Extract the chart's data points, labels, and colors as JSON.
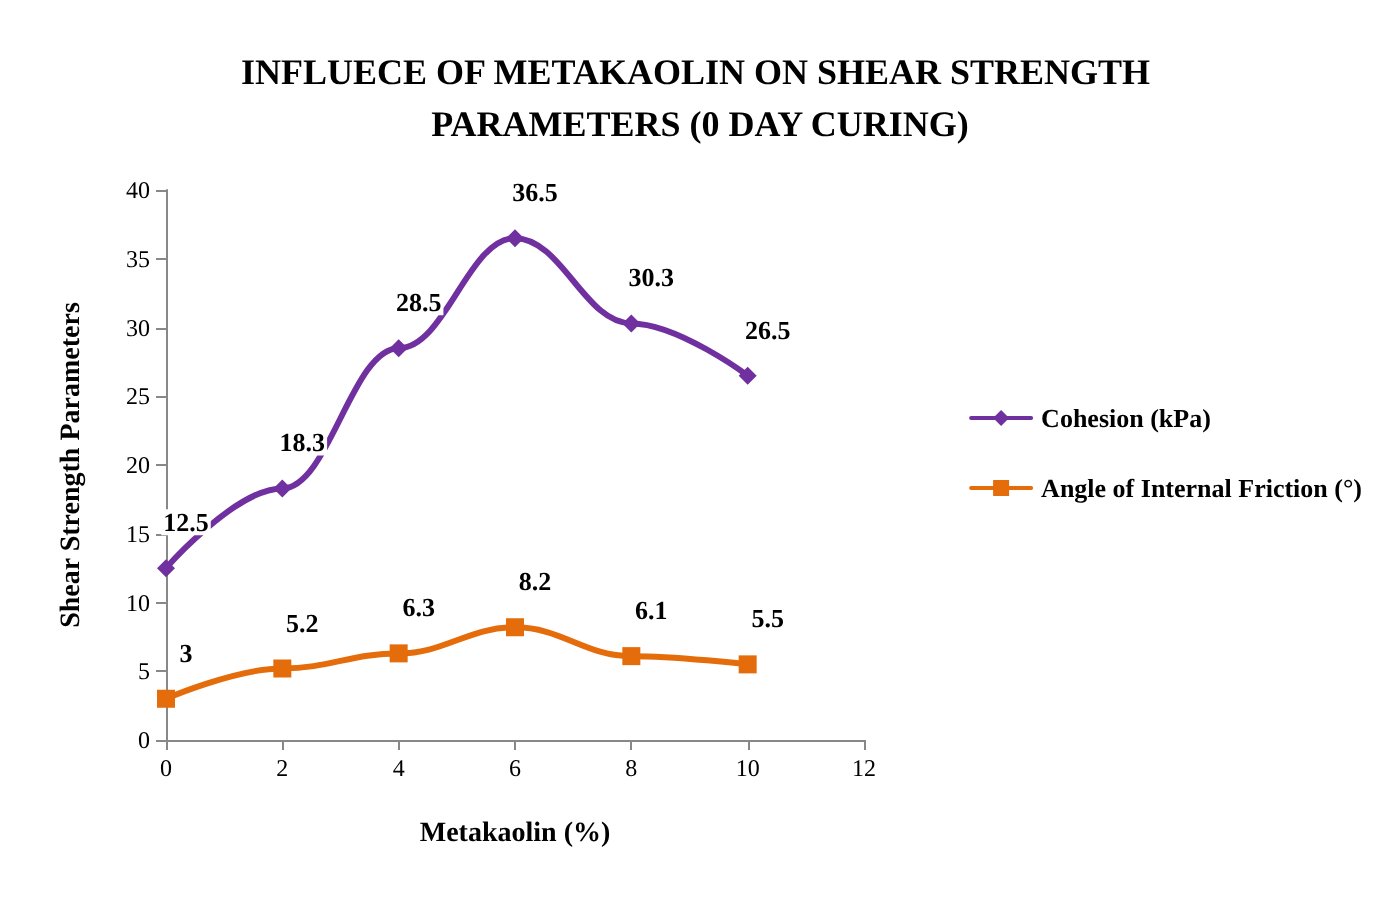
{
  "chart_data": {
    "type": "line",
    "title": "INFLUECE OF METAKAOLIN ON SHEAR STRENGTH PARAMETERS (0 DAY CURING)",
    "xlabel": "Metakaolin (%)",
    "ylabel": "Shear Strength Parameters",
    "x": [
      0,
      2,
      4,
      6,
      8,
      10
    ],
    "series": [
      {
        "name": "Cohesion (kPa)",
        "color": "#7030a0",
        "marker": "diamond",
        "values": [
          12.5,
          18.3,
          28.5,
          36.5,
          30.3,
          26.5
        ]
      },
      {
        "name": "Angle of Internal Friction (°)",
        "color": "#e46c0a",
        "marker": "square",
        "values": [
          3,
          5.2,
          6.3,
          8.2,
          6.1,
          5.5
        ]
      }
    ],
    "xlim": [
      0,
      12
    ],
    "xticks": [
      0,
      2,
      4,
      6,
      8,
      10,
      12
    ],
    "ylim": [
      0,
      40
    ],
    "yticks": [
      0,
      5,
      10,
      15,
      20,
      25,
      30,
      35,
      40
    ],
    "grid": false,
    "legend": "right",
    "data_labels": true
  }
}
